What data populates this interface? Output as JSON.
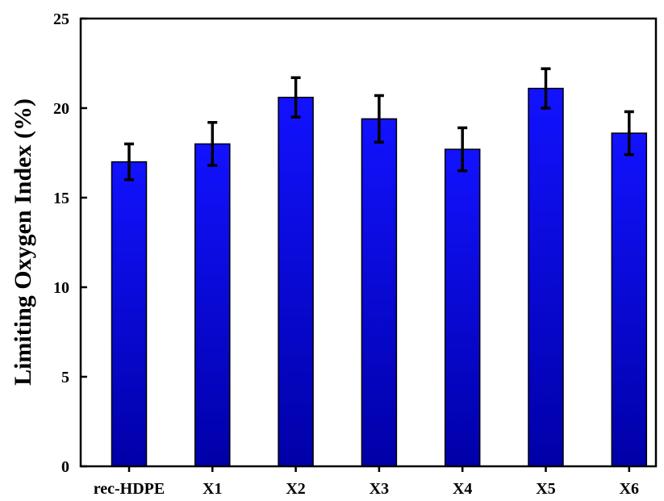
{
  "chart_data": {
    "type": "bar",
    "title": "",
    "xlabel": "",
    "ylabel": "Limiting Oxygen Index (%)",
    "categories": [
      "rec-HDPE",
      "X1",
      "X2",
      "X3",
      "X4",
      "X5",
      "X6"
    ],
    "series": [
      {
        "values": [
          17.0,
          18.0,
          20.6,
          19.4,
          17.7,
          21.1,
          18.6
        ],
        "errors": [
          1.0,
          1.2,
          1.1,
          1.3,
          1.2,
          1.1,
          1.2
        ]
      }
    ],
    "ylim": [
      0,
      25
    ],
    "yticks": [
      0,
      5,
      10,
      15,
      20,
      25
    ],
    "grid": false,
    "legend": "none",
    "colors": {
      "bar_top": "#1212ff",
      "bar_bottom": "#0000a8",
      "error_bar": "#000000",
      "axis": "#000000"
    }
  }
}
